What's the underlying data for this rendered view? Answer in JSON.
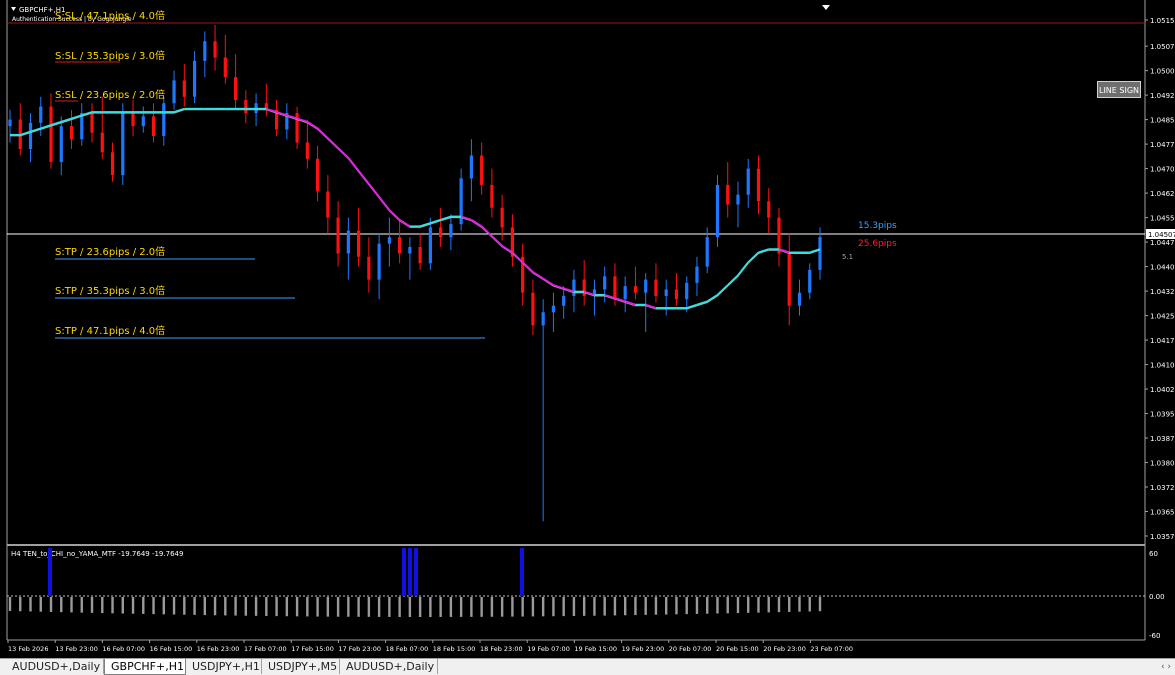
{
  "chart": {
    "symbol_title": "GBPCHF+,H1",
    "auth_text": "Authentication Success | by GogoJungle",
    "line_sign_label": "LINE SIGN",
    "current_price_label": "1.04507",
    "distance_up": "15.3pips",
    "distance_down": "25.6pips",
    "spread": "5.1",
    "sl_labels": [
      "S:SL / 47.1pips / 4.0倍",
      "S:SL / 35.3pips / 3.0倍",
      "S:SL / 23.6pips / 2.0倍"
    ],
    "tp_labels": [
      "S:TP / 23.6pips / 2.0倍",
      "S:TP / 35.3pips / 3.0倍",
      "S:TP / 47.1pips / 4.0倍"
    ],
    "price_axis": [
      "1.05155",
      "1.05075",
      "1.05000",
      "1.04925",
      "1.04850",
      "1.04775",
      "1.04700",
      "1.04625",
      "1.04550",
      "1.04475",
      "1.04400",
      "1.04325",
      "1.04250",
      "1.04175",
      "1.04100",
      "1.04025",
      "1.03950",
      "1.03875",
      "1.03800",
      "1.03725",
      "1.03650",
      "1.03575"
    ],
    "time_axis": [
      "13 Feb 2026",
      "13 Feb 23:00",
      "16 Feb 07:00",
      "16 Feb 15:00",
      "16 Feb 23:00",
      "17 Feb 07:00",
      "17 Feb 15:00",
      "17 Feb 23:00",
      "18 Feb 07:00",
      "18 Feb 15:00",
      "18 Feb 23:00",
      "19 Feb 07:00",
      "19 Feb 15:00",
      "19 Feb 23:00",
      "20 Feb 07:00",
      "20 Feb 15:00",
      "20 Feb 23:00",
      "23 Feb 07:00"
    ],
    "colors": {
      "bull": "#1e78ff",
      "bear": "#ff1010",
      "ma_up": "#33e0e0",
      "ma_down": "#e020e0",
      "label_yellow": "#ffd800",
      "tp_line": "#3aa0ff",
      "sl_line": "#d02020"
    }
  },
  "indicator": {
    "title": "H4  TEN_to_CHI_no_YAMA_MTF  -19.7649 -19.7649",
    "axis_top": "60",
    "axis_mid": "0.00",
    "axis_bottom": "-60"
  },
  "tabs": [
    {
      "label": "AUDUSD+,Daily",
      "active": false
    },
    {
      "label": "GBPCHF+,H1",
      "active": true
    },
    {
      "label": "USDJPY+,H1",
      "active": false
    },
    {
      "label": "USDJPY+,M5",
      "active": false
    },
    {
      "label": "AUDUSD+,Daily",
      "active": false
    }
  ],
  "chart_data": {
    "type": "candlestick",
    "series": [
      {
        "name": "GBPCHF+,H1",
        "values": [
          [
            1.0483,
            1.0488,
            1.0478,
            1.0485
          ],
          [
            1.0485,
            1.049,
            1.0474,
            1.0476
          ],
          [
            1.0476,
            1.0487,
            1.0472,
            1.0484
          ],
          [
            1.0484,
            1.0492,
            1.048,
            1.0489
          ],
          [
            1.0489,
            1.0493,
            1.047,
            1.0472
          ],
          [
            1.0472,
            1.0486,
            1.0468,
            1.0483
          ],
          [
            1.0483,
            1.0488,
            1.0476,
            1.0479
          ],
          [
            1.0479,
            1.049,
            1.0477,
            1.0487
          ],
          [
            1.0487,
            1.049,
            1.0478,
            1.0481
          ],
          [
            1.0481,
            1.0492,
            1.0473,
            1.0475
          ],
          [
            1.0475,
            1.0478,
            1.0466,
            1.0468
          ],
          [
            1.0468,
            1.049,
            1.0465,
            1.0487
          ],
          [
            1.0487,
            1.0491,
            1.048,
            1.0483
          ],
          [
            1.0483,
            1.0489,
            1.0481,
            1.0486
          ],
          [
            1.0486,
            1.049,
            1.0478,
            1.048
          ],
          [
            1.048,
            1.0492,
            1.0477,
            1.049
          ],
          [
            1.049,
            1.05,
            1.0488,
            1.0497
          ],
          [
            1.0497,
            1.0502,
            1.0489,
            1.0492
          ],
          [
            1.0492,
            1.0506,
            1.049,
            1.0503
          ],
          [
            1.0503,
            1.0512,
            1.0498,
            1.0509
          ],
          [
            1.0509,
            1.0514,
            1.05,
            1.0504
          ],
          [
            1.0504,
            1.0511,
            1.0496,
            1.0498
          ],
          [
            1.0498,
            1.0505,
            1.0488,
            1.0491
          ],
          [
            1.0491,
            1.0494,
            1.0484,
            1.0487
          ],
          [
            1.0487,
            1.0493,
            1.0483,
            1.049
          ],
          [
            1.049,
            1.0496,
            1.0486,
            1.0488
          ],
          [
            1.0488,
            1.0491,
            1.048,
            1.0482
          ],
          [
            1.0482,
            1.049,
            1.0479,
            1.0487
          ],
          [
            1.0487,
            1.0489,
            1.0476,
            1.0478
          ],
          [
            1.0478,
            1.0485,
            1.047,
            1.0473
          ],
          [
            1.0473,
            1.0477,
            1.046,
            1.0463
          ],
          [
            1.0463,
            1.0468,
            1.045,
            1.0455
          ],
          [
            1.0455,
            1.046,
            1.044,
            1.0444
          ],
          [
            1.0444,
            1.0455,
            1.0436,
            1.0451
          ],
          [
            1.0451,
            1.0458,
            1.044,
            1.0443
          ],
          [
            1.0443,
            1.0449,
            1.0432,
            1.0436
          ],
          [
            1.0436,
            1.045,
            1.043,
            1.0447
          ],
          [
            1.0447,
            1.0455,
            1.044,
            1.0449
          ],
          [
            1.0449,
            1.0454,
            1.0441,
            1.0444
          ],
          [
            1.0444,
            1.0449,
            1.0436,
            1.0446
          ],
          [
            1.0446,
            1.045,
            1.0439,
            1.0441
          ],
          [
            1.0441,
            1.0455,
            1.0439,
            1.0452
          ],
          [
            1.0452,
            1.0458,
            1.0446,
            1.0449
          ],
          [
            1.0449,
            1.0456,
            1.0445,
            1.0453
          ],
          [
            1.0453,
            1.047,
            1.0451,
            1.0467
          ],
          [
            1.0467,
            1.0479,
            1.046,
            1.0474
          ],
          [
            1.0474,
            1.0478,
            1.0462,
            1.0465
          ],
          [
            1.0465,
            1.047,
            1.0455,
            1.0458
          ],
          [
            1.0458,
            1.0462,
            1.0448,
            1.0452
          ],
          [
            1.0452,
            1.0456,
            1.044,
            1.0443
          ],
          [
            1.0443,
            1.0447,
            1.0428,
            1.0432
          ],
          [
            1.0432,
            1.0436,
            1.0419,
            1.0422
          ],
          [
            1.0422,
            1.043,
            1.0362,
            1.0426
          ],
          [
            1.0426,
            1.0432,
            1.042,
            1.0428
          ],
          [
            1.0428,
            1.0434,
            1.0424,
            1.0431
          ],
          [
            1.0431,
            1.0439,
            1.0426,
            1.0436
          ],
          [
            1.0436,
            1.0442,
            1.0428,
            1.0431
          ],
          [
            1.0431,
            1.0436,
            1.0425,
            1.0433
          ],
          [
            1.0433,
            1.044,
            1.0429,
            1.0437
          ],
          [
            1.0437,
            1.0441,
            1.0428,
            1.043
          ],
          [
            1.043,
            1.0437,
            1.0426,
            1.0434
          ],
          [
            1.0434,
            1.044,
            1.043,
            1.0432
          ],
          [
            1.0432,
            1.0438,
            1.042,
            1.0436
          ],
          [
            1.0436,
            1.0441,
            1.0429,
            1.0431
          ],
          [
            1.0431,
            1.0436,
            1.0425,
            1.0433
          ],
          [
            1.0433,
            1.0438,
            1.0428,
            1.043
          ],
          [
            1.043,
            1.0437,
            1.0426,
            1.0435
          ],
          [
            1.0435,
            1.0443,
            1.0431,
            1.044
          ],
          [
            1.044,
            1.0452,
            1.0438,
            1.0449
          ],
          [
            1.0449,
            1.0468,
            1.0446,
            1.0465
          ],
          [
            1.0465,
            1.0472,
            1.0455,
            1.0459
          ],
          [
            1.0459,
            1.0466,
            1.0452,
            1.0462
          ],
          [
            1.0462,
            1.0473,
            1.0458,
            1.047
          ],
          [
            1.047,
            1.0474,
            1.0456,
            1.046
          ],
          [
            1.046,
            1.0464,
            1.045,
            1.0455
          ],
          [
            1.0455,
            1.0458,
            1.044,
            1.0444
          ],
          [
            1.0444,
            1.045,
            1.0422,
            1.0428
          ],
          [
            1.0428,
            1.0436,
            1.0425,
            1.0432
          ],
          [
            1.0432,
            1.0441,
            1.043,
            1.0439
          ],
          [
            1.0439,
            1.0452,
            1.0436,
            1.0449
          ]
        ]
      }
    ],
    "ma_gray": [
      1.048,
      1.048,
      1.0481,
      1.0482,
      1.0483,
      1.0484,
      1.0485,
      1.0486,
      1.0487,
      1.0487,
      1.0487,
      1.0487,
      1.0487,
      1.0487,
      1.0487,
      1.0487,
      1.0487,
      1.0488,
      1.0488,
      1.0488,
      1.0488,
      1.0488,
      1.0488,
      1.0488,
      1.0488,
      1.0488,
      1.0487,
      1.0486,
      1.0485,
      1.0484,
      1.0482,
      1.0479,
      1.0476,
      1.0473,
      1.0469,
      1.0465,
      1.0461,
      1.0457,
      1.0454,
      1.0452,
      1.0452,
      1.0453,
      1.0454,
      1.0455,
      1.0455,
      1.0454,
      1.0452,
      1.0449,
      1.0446,
      1.0444,
      1.0441,
      1.0438,
      1.0436,
      1.0434,
      1.0433,
      1.0432,
      1.0432,
      1.0431,
      1.0431,
      1.043,
      1.0429,
      1.0428,
      1.0428,
      1.0427,
      1.0427,
      1.0427,
      1.0427,
      1.0428,
      1.0429,
      1.0431,
      1.0434,
      1.0437,
      1.0441,
      1.0444,
      1.0445,
      1.0445,
      1.0444,
      1.0444,
      1.0444,
      1.0445
    ],
    "indicator_histogram": "gray bars just below the 0.00 line across the panel",
    "indicator_spikes": "blue spikes near 13 Feb 2026, 18 Feb 07:00 and 19 Feb 07:00"
  }
}
